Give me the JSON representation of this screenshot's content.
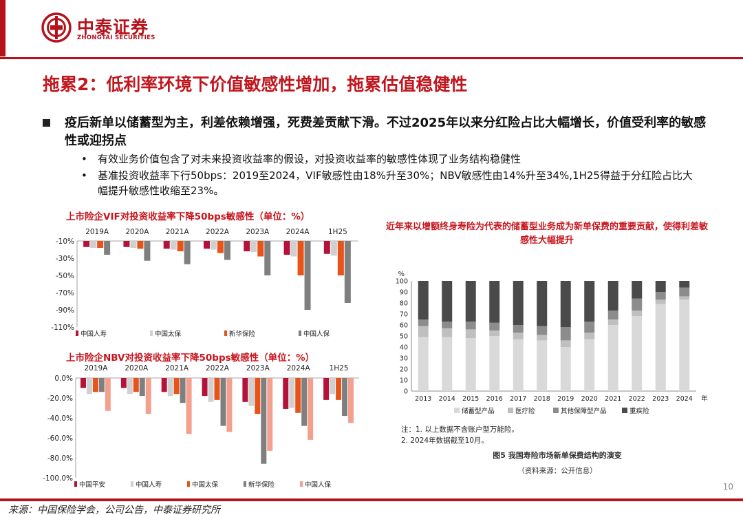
{
  "header": {
    "company_cn": "中泰证券",
    "company_en": "ZHONGTAI SECURITIES"
  },
  "colors": {
    "brand_red": "#b5121b"
  },
  "title": "拖累2：低利率环境下价值敏感性增加，拖累估值稳健性",
  "bullets": {
    "main": "疫后新单以储蓄型为主，利差依赖增强，死费差贡献下滑。不过2025年以来分红险占比大幅增长，价值受利率的敏感性或迎拐点",
    "sub": [
      "有效业务价值包含了对未来投资收益率的假设，对投资收益率的敏感性体现了业务结构稳健性",
      "基准投资收益率下行50bps：2019至2024，VIF敏感性由18%升至30%；NBV敏感性由14%升至34%,1H25得益于分红险占比大幅提升敏感性收缩至23%。"
    ]
  },
  "chart_data": [
    {
      "type": "bar",
      "title": "上市险企VIF对投资收益率下降50bps敏感性（单位：%）",
      "categories": [
        "2019A",
        "2020A",
        "2021A",
        "2022A",
        "2023A",
        "2024A",
        "1H25"
      ],
      "y_tick_labels": [
        "-10%",
        "-30%",
        "-50%",
        "-70%",
        "-90%",
        "-110%"
      ],
      "ylim": [
        -110,
        -10
      ],
      "series": [
        {
          "name": "中国人寿",
          "color": "#b5123a",
          "values": [
            -17,
            -17,
            -19,
            -19,
            -22,
            -26,
            -25
          ]
        },
        {
          "name": "中国太保",
          "color": "#d0d0d0",
          "values": [
            -18,
            -18,
            -20,
            -20,
            -23,
            -28,
            -27
          ]
        },
        {
          "name": "新华保险",
          "color": "#e8531a",
          "values": [
            -18,
            -19,
            -22,
            -24,
            -28,
            -50,
            -50
          ]
        },
        {
          "name": "中国人保",
          "color": "#7f7f7f",
          "values": [
            -26,
            -33,
            -37,
            -32,
            -50,
            -90,
            -82
          ]
        }
      ]
    },
    {
      "type": "bar",
      "title": "上市险企NBV对投资收益率下降50bps敏感性（单位：%）",
      "categories": [
        "2019A",
        "2020A",
        "2021A",
        "2022A",
        "2023A",
        "2024A",
        "1H25"
      ],
      "y_tick_labels": [
        "0.0%",
        "-20.0%",
        "-40.0%",
        "-60.0%",
        "-80.0%",
        "-100.0%"
      ],
      "ylim": [
        -100,
        0
      ],
      "series": [
        {
          "name": "中国平安",
          "color": "#b5123a",
          "values": [
            -10,
            -10,
            -14,
            -18,
            -24,
            -31,
            -22
          ]
        },
        {
          "name": "中国人寿",
          "color": "#d0d0d0",
          "values": [
            -16,
            -16,
            -18,
            -24,
            -28,
            -30,
            -16
          ]
        },
        {
          "name": "中国太保",
          "color": "#e8531a",
          "values": [
            -14,
            -14,
            -16,
            -22,
            -36,
            -35,
            -22
          ]
        },
        {
          "name": "新华保险",
          "color": "#7f7f7f",
          "values": [
            -14,
            -18,
            -25,
            -48,
            -86,
            -48,
            -38
          ]
        },
        {
          "name": "中国人保",
          "color": "#f4a08e",
          "values": [
            -33,
            -36,
            -56,
            -54,
            -73,
            -62,
            -45
          ]
        }
      ]
    },
    {
      "type": "bar",
      "stacked": true,
      "title": "近年来以增额终身寿险为代表的储蓄型业务成为新单保费的重要贡献，使得利差敏感性大幅提升",
      "ylabel": "%",
      "xlabel": "年",
      "categories": [
        "2013",
        "2014",
        "2015",
        "2016",
        "2017",
        "2018",
        "2019",
        "2020",
        "2021",
        "2022",
        "2023",
        "2024"
      ],
      "y_tick_labels": [
        "0",
        "10",
        "20",
        "30",
        "40",
        "50",
        "60",
        "70",
        "80",
        "90",
        "100"
      ],
      "ylim": [
        0,
        100
      ],
      "series": [
        {
          "name": "储蓄型产品",
          "color": "#d9d9d9",
          "values": [
            49,
            49,
            48,
            50,
            47,
            46,
            40,
            47,
            60,
            68,
            79,
            83
          ]
        },
        {
          "name": "医疗险",
          "color": "#bfbfbf",
          "values": [
            10,
            8,
            8,
            5,
            6,
            5,
            6,
            6,
            5,
            5,
            4,
            3
          ]
        },
        {
          "name": "其他保障型产品",
          "color": "#8c8c8c",
          "values": [
            6,
            6,
            7,
            7,
            7,
            8,
            12,
            10,
            8,
            11,
            7,
            8
          ]
        },
        {
          "name": "重疾险",
          "color": "#4a4a4a",
          "values": [
            35,
            37,
            37,
            38,
            40,
            41,
            42,
            37,
            27,
            16,
            10,
            6
          ]
        }
      ],
      "notes": [
        "注：1. 以上数据不含账户型万能险。",
        "2. 2024年数据截至10月。"
      ],
      "caption": "图5  我国寿险市场新单保费结构的演变",
      "source": "（资料来源：公开信息）"
    }
  ],
  "footer": {
    "source": "来源：中国保险学会，公司公告，中泰证券研究所",
    "page_number": "10"
  }
}
